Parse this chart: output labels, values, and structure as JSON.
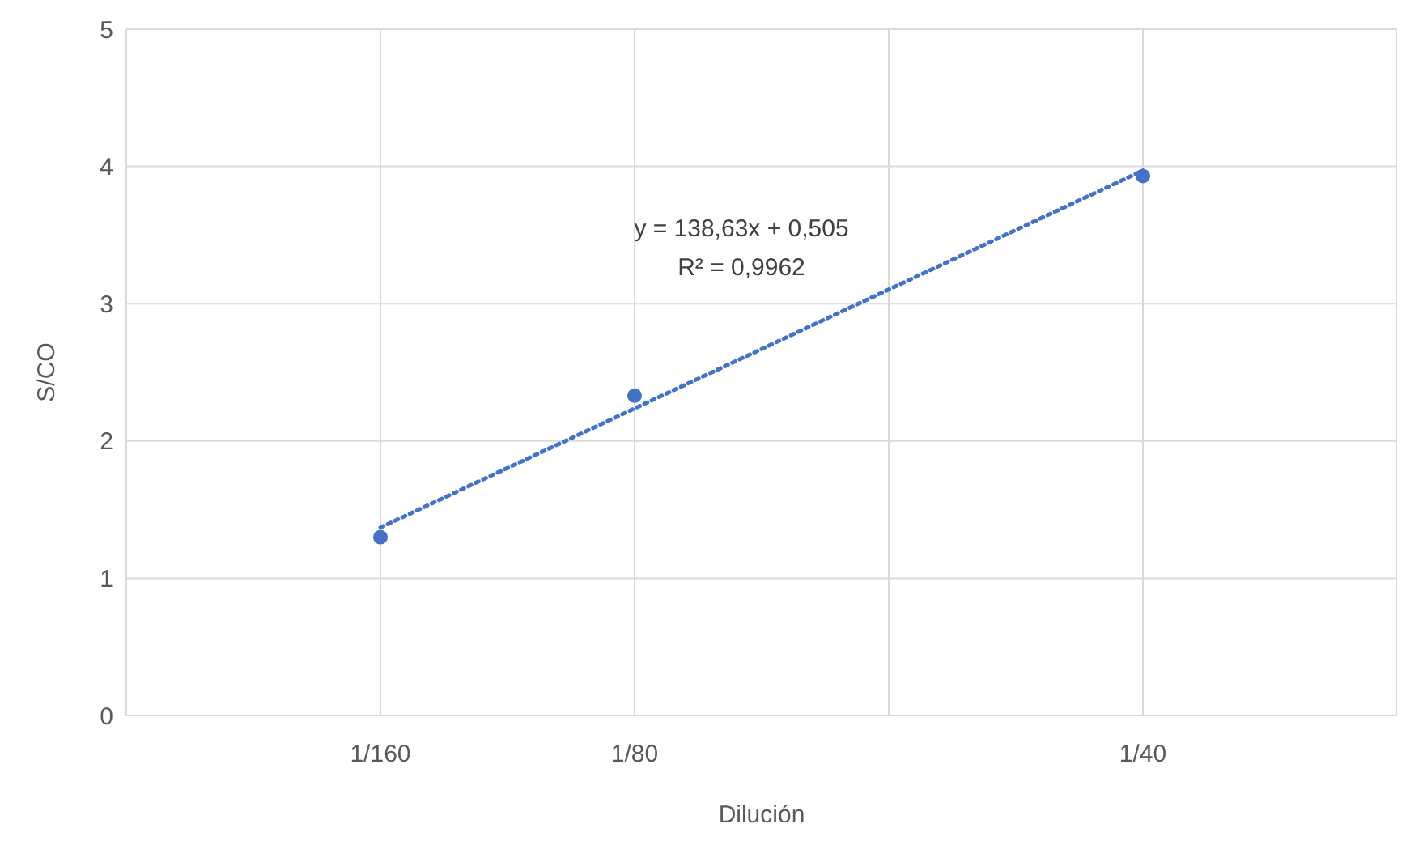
{
  "chart_data": {
    "type": "scatter",
    "xlabel": "Dilución",
    "ylabel": "S/CO",
    "marker": "circle",
    "grid": true,
    "categories": [
      "1/160",
      "1/80",
      null,
      "1/40"
    ],
    "ylim": [
      0,
      5
    ],
    "yticks": [
      0,
      1,
      2,
      3,
      4,
      5
    ],
    "series": [
      {
        "color": "#4472c4",
        "x": [
          "1/160",
          "1/80",
          "1/40"
        ],
        "values": [
          1.3,
          2.33,
          3.93
        ]
      },
      {
        "type": "line",
        "color": "#4472c4",
        "line_style": "dotted",
        "marker": "none",
        "x": [
          "1/160",
          "1/40"
        ],
        "values": [
          1.37,
          3.97
        ]
      }
    ],
    "annotations": [
      "y = 138,63x + 0,505",
      "R² = 0,9962"
    ]
  }
}
